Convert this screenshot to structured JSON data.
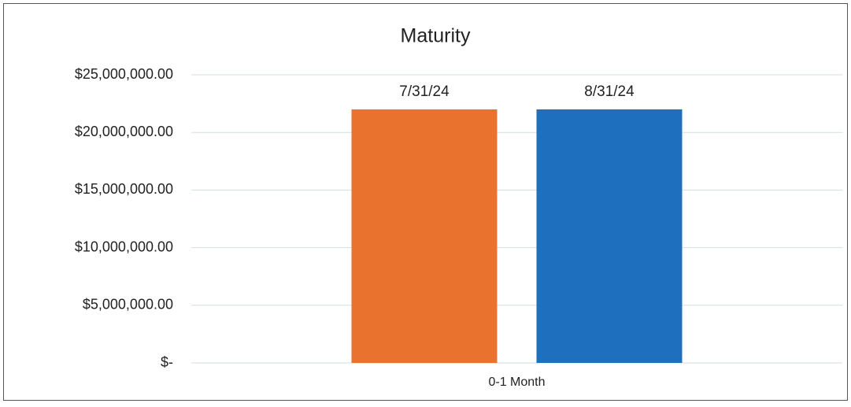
{
  "chart_data": {
    "type": "bar",
    "title": "Maturity",
    "categories": [
      "0-1 Month"
    ],
    "series": [
      {
        "name": "7/31/24",
        "color": "#e8722e",
        "values": [
          22000000
        ]
      },
      {
        "name": "8/31/24",
        "color": "#1f6fbf",
        "values": [
          22000000
        ]
      }
    ],
    "ylim": [
      0,
      25000000
    ],
    "yticks": [
      {
        "value": 0,
        "label": "$-"
      },
      {
        "value": 5000000,
        "label": "$5,000,000.00"
      },
      {
        "value": 10000000,
        "label": "$10,000,000.00"
      },
      {
        "value": 15000000,
        "label": "$15,000,000.00"
      },
      {
        "value": 20000000,
        "label": "$20,000,000.00"
      },
      {
        "value": 25000000,
        "label": "$25,000,000.00"
      }
    ],
    "grid": true
  }
}
